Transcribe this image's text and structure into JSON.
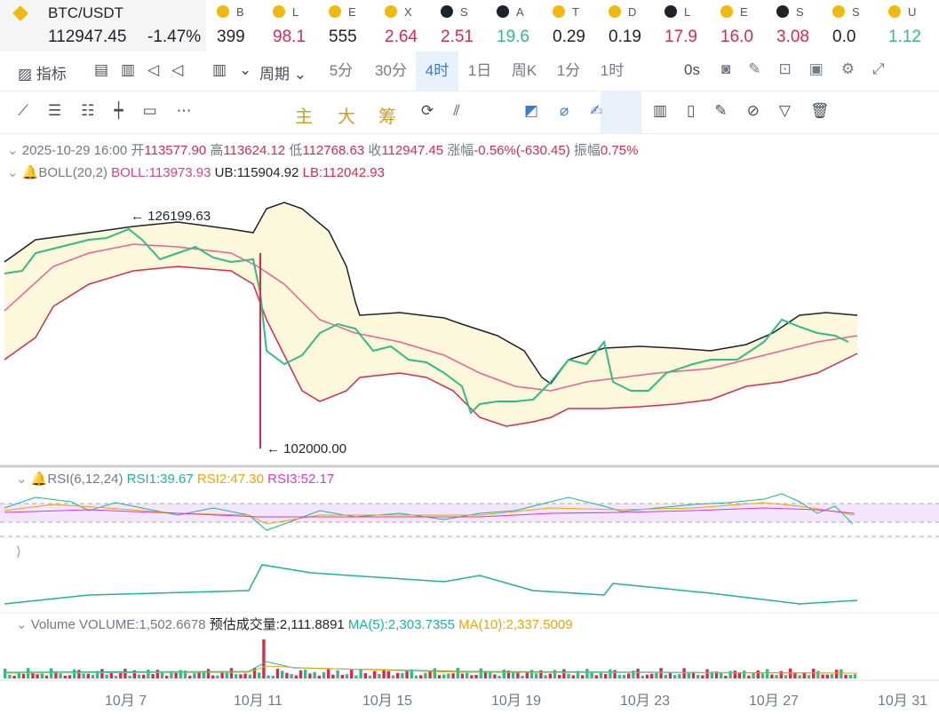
{
  "ticker_bar": {
    "symbol": "BTC/USDT",
    "price": "112947.45",
    "change": "-1.47%",
    "items": [
      {
        "name": "B",
        "value": "399",
        "icon": "#f0b90b",
        "color": "#1e2329"
      },
      {
        "name": "L",
        "value": "98.1",
        "icon": "#f0b90b",
        "color": "#e0294a"
      },
      {
        "name": "E",
        "value": "555",
        "icon": "#f0b90b",
        "color": "#1e2329"
      },
      {
        "name": "X",
        "value": "2.64",
        "icon": "#f0b90b",
        "color": "#e0294a"
      },
      {
        "name": "S",
        "value": "2.51",
        "icon": "#1e2329",
        "color": "#e0294a"
      },
      {
        "name": "A",
        "value": "19.6",
        "icon": "#1e2329",
        "color": "#2ebd85"
      },
      {
        "name": "T",
        "value": "0.29",
        "icon": "#f0b90b",
        "color": "#1e2329"
      },
      {
        "name": "D",
        "value": "0.19",
        "icon": "#f0b90b",
        "color": "#1e2329"
      },
      {
        "name": "L",
        "value": "17.9",
        "icon": "#1e2329",
        "color": "#e0294a"
      },
      {
        "name": "E",
        "value": "16.0",
        "icon": "#f0b90b",
        "color": "#e0294a"
      },
      {
        "name": "S",
        "value": "3.08",
        "icon": "#1e2329",
        "color": "#e0294a"
      },
      {
        "name": "S",
        "value": "0.0",
        "icon": "#f0b90b",
        "color": "#1e2329"
      },
      {
        "name": "U",
        "value": "1.12",
        "icon": "#f0b90b",
        "color": "#2ebd85"
      }
    ]
  },
  "toolbar": {
    "indicators": "指标",
    "period": "周期",
    "intervals": [
      "5分",
      "30分",
      "4时",
      "1日",
      "周K",
      "1分",
      "1时"
    ],
    "countdown": "0s"
  },
  "draw_toolbar": {
    "main": "主",
    "big": "大",
    "chips": "筹"
  },
  "ohlc": {
    "time": "2025-10-29 16:00",
    "open_label": "开",
    "open": "113577.90",
    "high_label": "高",
    "high": "113624.12",
    "low_label": "低",
    "low": "112768.63",
    "close_label": "收",
    "close": "112947.45",
    "change_label": "涨幅",
    "change": "-0.56%(-630.45)",
    "amplitude_label": "振幅",
    "amplitude": "0.75%"
  },
  "boll": {
    "name": "BOLL(20,2)",
    "mid": "BOLL:113973.93",
    "ub": "UB:115904.92",
    "lb": "LB:112042.93"
  },
  "annotations": {
    "high": "← 126199.63",
    "low": "← 102000.00"
  },
  "rsi": {
    "name": "RSI(6,12,24)",
    "rsi1": "RSI1:39.67",
    "rsi2": "RSI2:47.30",
    "rsi3": "RSI3:52.17"
  },
  "volume": {
    "name": "Volume",
    "volume": "VOLUME:1,502.6678",
    "estimated": "预估成交量:2,111.8891",
    "ma5": "MA(5):2,303.7355",
    "ma10": "MA(10):2,337.5009"
  },
  "x_axis": [
    "10月 7",
    "10月 11",
    "10月 15",
    "10月 19",
    "10月 23",
    "10月 27",
    "10月 31"
  ]
}
